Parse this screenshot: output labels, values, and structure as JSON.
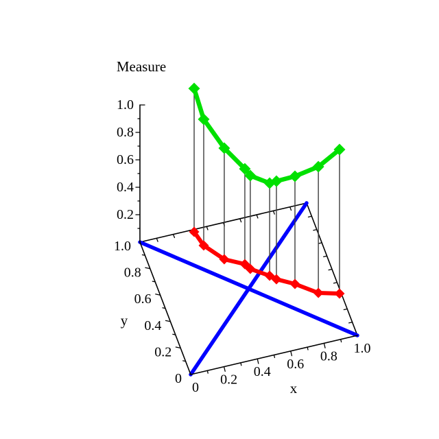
{
  "figure": {
    "background": "#ffffff"
  },
  "chart_data": {
    "type": "line",
    "subtype": "3d-curve-with-base-projection-and-drop-lines",
    "title": "Measure",
    "xlabel": "x",
    "ylabel": "y",
    "zlabel": "Measure",
    "xlim": [
      0,
      1
    ],
    "ylim": [
      0,
      1
    ],
    "zlim": [
      0,
      1
    ],
    "grid": false,
    "legend": null,
    "x_tick_values": [
      0,
      0.2,
      0.4,
      0.6,
      0.8,
      1.0
    ],
    "x_tick_labels": [
      "0",
      "0.2",
      "0.4",
      "0.6",
      "0.8",
      "1.0"
    ],
    "y_tick_values": [
      1.0,
      0.8,
      0.6,
      0.4,
      0.2,
      0
    ],
    "y_tick_labels": [
      "1.0",
      "0.8",
      "0.6",
      "0.4",
      "0.2",
      "0"
    ],
    "z_tick_values": [
      1.0,
      0.8,
      0.6,
      0.4,
      0.2
    ],
    "z_tick_labels": [
      "1.0",
      "0.8",
      "0.6",
      "0.4",
      "0.2"
    ],
    "minor_tick_step": 0.1,
    "marker": "diamond",
    "colors": {
      "curve": "#00e000",
      "projection": "#ff0000",
      "diagonals": "#0000ff",
      "drop_lines": "#3c3c3c",
      "axes": "#000000",
      "text": "#000000"
    },
    "points": [
      {
        "x": 0.32,
        "y": 0.983,
        "z": 1.045
      },
      {
        "x": 0.344,
        "y": 0.873,
        "z": 0.92
      },
      {
        "x": 0.428,
        "y": 0.744,
        "z": 0.81
      },
      {
        "x": 0.531,
        "y": 0.677,
        "z": 0.695
      },
      {
        "x": 0.551,
        "y": 0.635,
        "z": 0.68
      },
      {
        "x": 0.643,
        "y": 0.556,
        "z": 0.675
      },
      {
        "x": 0.673,
        "y": 0.521,
        "z": 0.715
      },
      {
        "x": 0.765,
        "y": 0.458,
        "z": 0.785
      },
      {
        "x": 0.875,
        "y": 0.358,
        "z": 0.92
      },
      {
        "x": 0.99,
        "y": 0.319,
        "z": 1.05
      }
    ],
    "diagonals": [
      {
        "name": "y-equals-x",
        "from": [
          0,
          0,
          0
        ],
        "to": [
          1,
          1,
          0
        ]
      },
      {
        "name": "y-equals-1-minus-x",
        "from": [
          0,
          1,
          0
        ],
        "to": [
          1,
          0,
          0
        ]
      }
    ],
    "drop_lines": true
  }
}
